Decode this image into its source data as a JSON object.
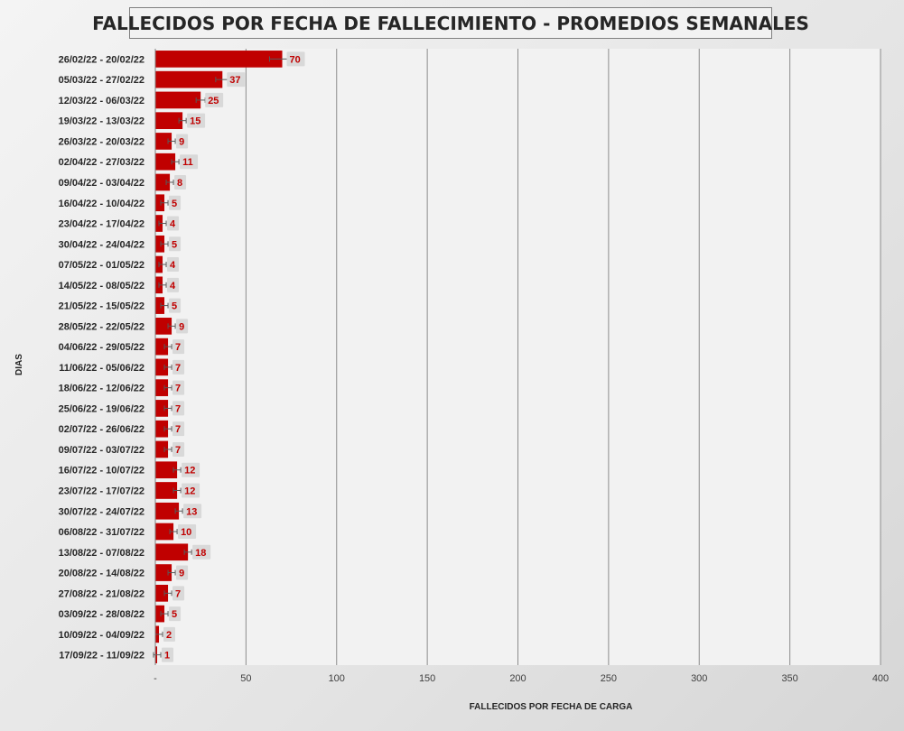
{
  "chart_data": {
    "type": "bar",
    "orientation": "horizontal",
    "title": "FALLECIDOS POR FECHA DE FALLECIMIENTO - PROMEDIOS SEMANALES",
    "xlabel": "FALLECIDOS POR FECHA DE CARGA",
    "ylabel": "DIAS",
    "xlim": [
      0,
      400
    ],
    "xticks": [
      0,
      50,
      100,
      150,
      200,
      250,
      300,
      350,
      400
    ],
    "xtick_labels": [
      "-",
      "50",
      "100",
      "150",
      "200",
      "250",
      "300",
      "350",
      "400"
    ],
    "grid": true,
    "error_bars": true,
    "bar_color": "#c00000",
    "plot_background": "#f2f2f2",
    "categories": [
      "26/02/22 - 20/02/22",
      "05/03/22 - 27/02/22",
      "12/03/22 - 06/03/22",
      "19/03/22 - 13/03/22",
      "26/03/22 - 20/03/22",
      "02/04/22 - 27/03/22",
      "09/04/22 - 03/04/22",
      "16/04/22 - 10/04/22",
      "23/04/22 - 17/04/22",
      "30/04/22 - 24/04/22",
      "07/05/22 - 01/05/22",
      "14/05/22 - 08/05/22",
      "21/05/22 - 15/05/22",
      "28/05/22 - 22/05/22",
      "04/06/22 - 29/05/22",
      "11/06/22 - 05/06/22",
      "18/06/22 - 12/06/22",
      "25/06/22 - 19/06/22",
      "02/07/22 - 26/06/22",
      "09/07/22 - 03/07/22",
      "16/07/22 - 10/07/22",
      "23/07/22 - 17/07/22",
      "30/07/22 - 24/07/22",
      "06/08/22 - 31/07/22",
      "13/08/22 - 07/08/22",
      "20/08/22 - 14/08/22",
      "27/08/22 - 21/08/22",
      "03/09/22 - 28/08/22",
      "10/09/22 - 04/09/22",
      "17/09/22 - 11/09/22"
    ],
    "values": [
      70,
      37,
      25,
      15,
      9,
      11,
      8,
      5,
      4,
      5,
      4,
      4,
      5,
      9,
      7,
      7,
      7,
      7,
      7,
      7,
      12,
      12,
      13,
      10,
      18,
      9,
      7,
      5,
      2,
      1
    ],
    "value_labels": [
      "70",
      "37",
      "25",
      "15",
      "9",
      "11",
      "8",
      "5",
      "4",
      "5",
      "4",
      "4",
      "5",
      "9",
      "7",
      "7",
      "7",
      "7",
      "7",
      "7",
      "12",
      "12",
      "13",
      "10",
      "18",
      "9",
      "7",
      "5",
      "2",
      "1"
    ]
  }
}
